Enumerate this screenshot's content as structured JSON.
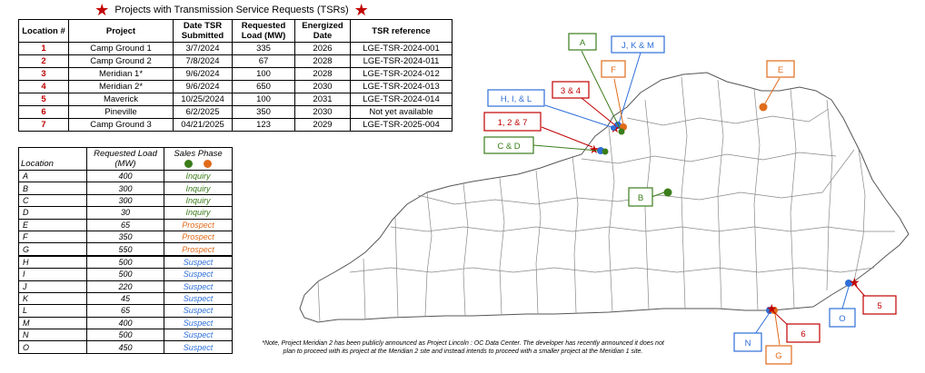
{
  "title": "Projects with Transmission Service Requests (TSRs)",
  "tsr_table": {
    "headers": [
      "Location #",
      "Project",
      "Date TSR Submitted",
      "Requested Load (MW)",
      "Energized Date",
      "TSR reference"
    ],
    "rows": [
      [
        "1",
        "Camp Ground 1",
        "3/7/2024",
        "335",
        "2026",
        "LGE-TSR-2024-001"
      ],
      [
        "2",
        "Camp Ground 2",
        "7/8/2024",
        "67",
        "2028",
        "LGE-TSR-2024-011"
      ],
      [
        "3",
        "Meridian 1*",
        "9/6/2024",
        "100",
        "2028",
        "LGE-TSR-2024-012"
      ],
      [
        "4",
        "Meridian 2*",
        "9/6/2024",
        "650",
        "2030",
        "LGE-TSR-2024-013"
      ],
      [
        "5",
        "Maverick",
        "10/25/2024",
        "100",
        "2031",
        "LGE-TSR-2024-014"
      ],
      [
        "6",
        "Pineville",
        "6/2/2025",
        "350",
        "2030",
        "Not yet available"
      ],
      [
        "7",
        "Camp Ground 3",
        "04/21/2025",
        "123",
        "2029",
        "LGE-TSR-2025-004"
      ]
    ]
  },
  "sales_table": {
    "headers": [
      "Location",
      "Requested Load (MW)",
      "Sales Phase"
    ],
    "rows": [
      [
        "A",
        "400",
        "Inquiry"
      ],
      [
        "B",
        "300",
        "Inquiry"
      ],
      [
        "C",
        "300",
        "Inquiry"
      ],
      [
        "D",
        "30",
        "Inquiry"
      ],
      [
        "E",
        "65",
        "Prospect"
      ],
      [
        "F",
        "350",
        "Prospect"
      ],
      [
        "G",
        "550",
        "Prospect"
      ],
      [
        "H",
        "500",
        "Suspect"
      ],
      [
        "I",
        "500",
        "Suspect"
      ],
      [
        "J",
        "220",
        "Suspect"
      ],
      [
        "K",
        "45",
        "Suspect"
      ],
      [
        "L",
        "65",
        "Suspect"
      ],
      [
        "M",
        "400",
        "Suspect"
      ],
      [
        "N",
        "500",
        "Suspect"
      ],
      [
        "O",
        "450",
        "Suspect"
      ]
    ]
  },
  "colors": {
    "inquiry": "#3a7d1a",
    "prospect": "#e06c1b",
    "suspect": "#2e6fd8",
    "tsr": "#c00000"
  },
  "map_labels": {
    "A": "A",
    "JKM": "J, K & M",
    "F": "F",
    "E": "E",
    "HIL": "H, I, & L",
    "n34": "3 & 4",
    "n127": "1, 2 & 7",
    "CD": "C & D",
    "B": "B",
    "n5": "5",
    "O": "O",
    "n6": "6",
    "N": "N",
    "G": "G"
  },
  "note": "*Note, Project Meridian 2 has been publicly announced as Project Lincoln : OC Data Center.  The developer has recently announced it does not plan to proceed with its project at the Meridian 2 site and instead intends to proceed with a  smaller project at the Meridian 1 site."
}
